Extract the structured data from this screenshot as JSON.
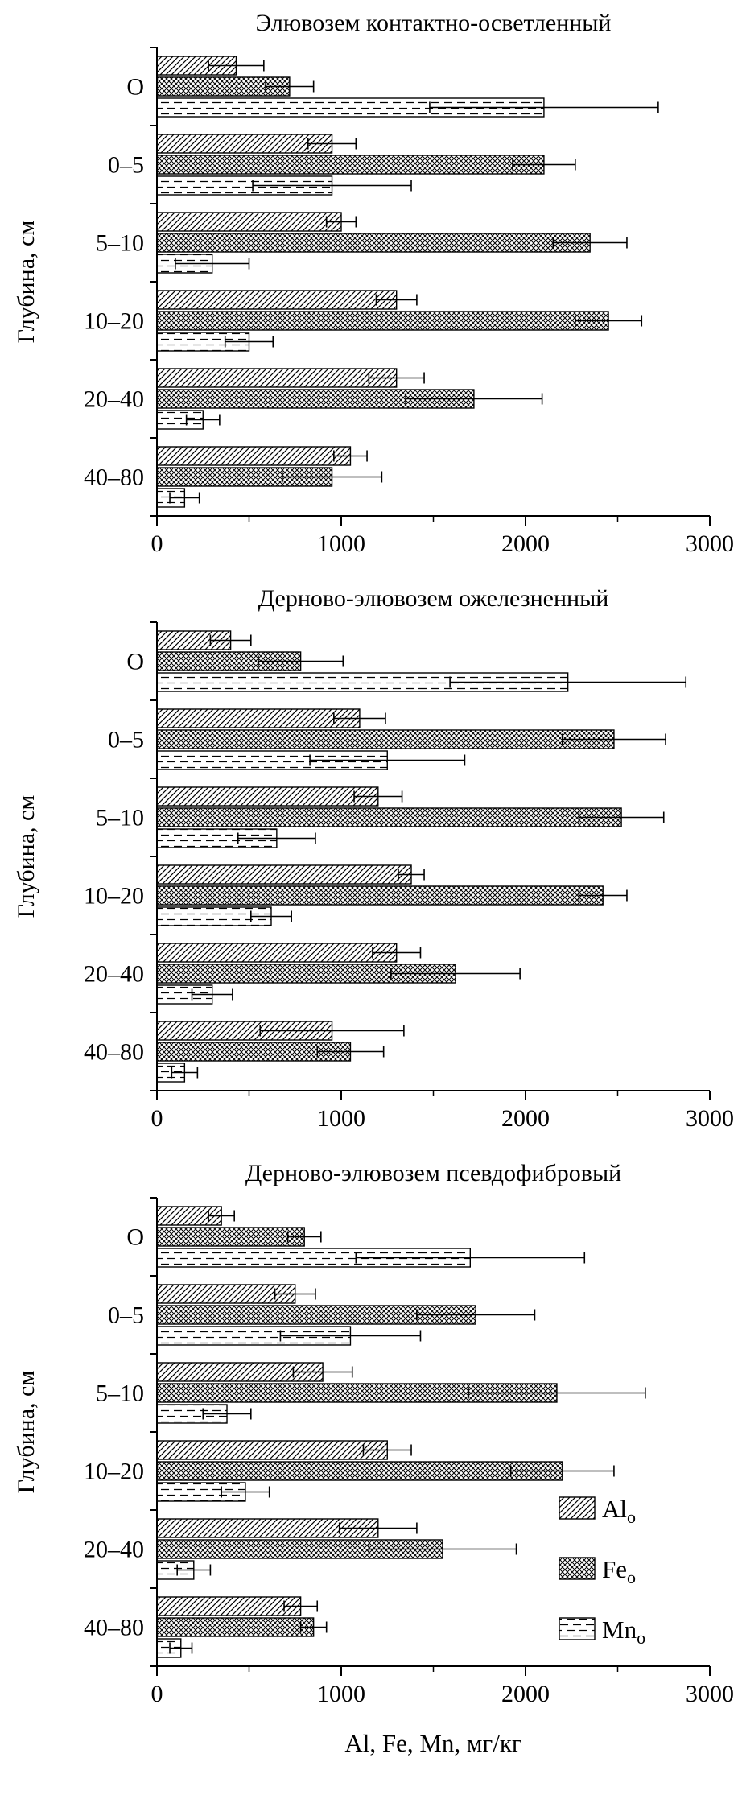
{
  "figure": {
    "xlabel": "Al, Fe, Mn, мг/кг",
    "ylabel": "Глубина, см",
    "background": "#ffffff",
    "ink": "#000000"
  },
  "legend": {
    "position": "lower-right-of-third-chart",
    "items": [
      {
        "label": "Al",
        "sub": "o",
        "hatch": "diagonal"
      },
      {
        "label": "Fe",
        "sub": "o",
        "hatch": "cross"
      },
      {
        "label": "Mn",
        "sub": "o",
        "hatch": "dash"
      }
    ]
  },
  "chart_data": [
    {
      "type": "bar",
      "orientation": "horizontal",
      "title": "Элювозем контактно-осветленный",
      "ylabel": "Глубина, см",
      "xlabel": "Al, Fe, Mn, мг/кг",
      "xlim": [
        0,
        3000
      ],
      "xticks": [
        0,
        1000,
        2000,
        3000
      ],
      "grid": false,
      "categories": [
        "O",
        "0–5",
        "5–10",
        "10–20",
        "20–40",
        "40–80"
      ],
      "series": [
        {
          "name": "Al_o",
          "hatch": "diagonal",
          "values": [
            430,
            950,
            1000,
            1300,
            1300,
            1050
          ],
          "errors": [
            150,
            130,
            80,
            110,
            150,
            90
          ]
        },
        {
          "name": "Fe_o",
          "hatch": "cross",
          "values": [
            720,
            2100,
            2350,
            2450,
            1720,
            950
          ],
          "errors": [
            130,
            170,
            200,
            180,
            370,
            270
          ]
        },
        {
          "name": "Mn_o",
          "hatch": "dash",
          "values": [
            2100,
            950,
            300,
            500,
            250,
            150
          ],
          "errors": [
            620,
            430,
            200,
            130,
            90,
            80
          ]
        }
      ]
    },
    {
      "type": "bar",
      "orientation": "horizontal",
      "title": "Дерново-элювозем ожелезненный",
      "ylabel": "Глубина, см",
      "xlabel": "Al, Fe, Mn, мг/кг",
      "xlim": [
        0,
        3000
      ],
      "xticks": [
        0,
        1000,
        2000,
        3000
      ],
      "grid": false,
      "categories": [
        "O",
        "0–5",
        "5–10",
        "10–20",
        "20–40",
        "40–80"
      ],
      "series": [
        {
          "name": "Al_o",
          "hatch": "diagonal",
          "values": [
            400,
            1100,
            1200,
            1380,
            1300,
            950
          ],
          "errors": [
            110,
            140,
            130,
            70,
            130,
            390
          ]
        },
        {
          "name": "Fe_o",
          "hatch": "cross",
          "values": [
            780,
            2480,
            2520,
            2420,
            1620,
            1050
          ],
          "errors": [
            230,
            280,
            230,
            130,
            350,
            180
          ]
        },
        {
          "name": "Mn_o",
          "hatch": "dash",
          "values": [
            2230,
            1250,
            650,
            620,
            300,
            150
          ],
          "errors": [
            640,
            420,
            210,
            110,
            110,
            70
          ]
        }
      ]
    },
    {
      "type": "bar",
      "orientation": "horizontal",
      "title": "Дерново-элювозем псевдофибровый",
      "ylabel": "Глубина, см",
      "xlabel": "Al, Fe, Mn, мг/кг",
      "xlim": [
        0,
        3000
      ],
      "xticks": [
        0,
        1000,
        2000,
        3000
      ],
      "grid": false,
      "categories": [
        "O",
        "0–5",
        "5–10",
        "10–20",
        "20–40",
        "40–80"
      ],
      "series": [
        {
          "name": "Al_o",
          "hatch": "diagonal",
          "values": [
            350,
            750,
            900,
            1250,
            1200,
            780
          ],
          "errors": [
            70,
            110,
            160,
            130,
            210,
            90
          ]
        },
        {
          "name": "Fe_o",
          "hatch": "cross",
          "values": [
            800,
            1730,
            2170,
            2200,
            1550,
            850
          ],
          "errors": [
            90,
            320,
            480,
            280,
            400,
            70
          ]
        },
        {
          "name": "Mn_o",
          "hatch": "dash",
          "values": [
            1700,
            1050,
            380,
            480,
            200,
            130
          ],
          "errors": [
            620,
            380,
            130,
            130,
            90,
            60
          ]
        }
      ]
    }
  ]
}
